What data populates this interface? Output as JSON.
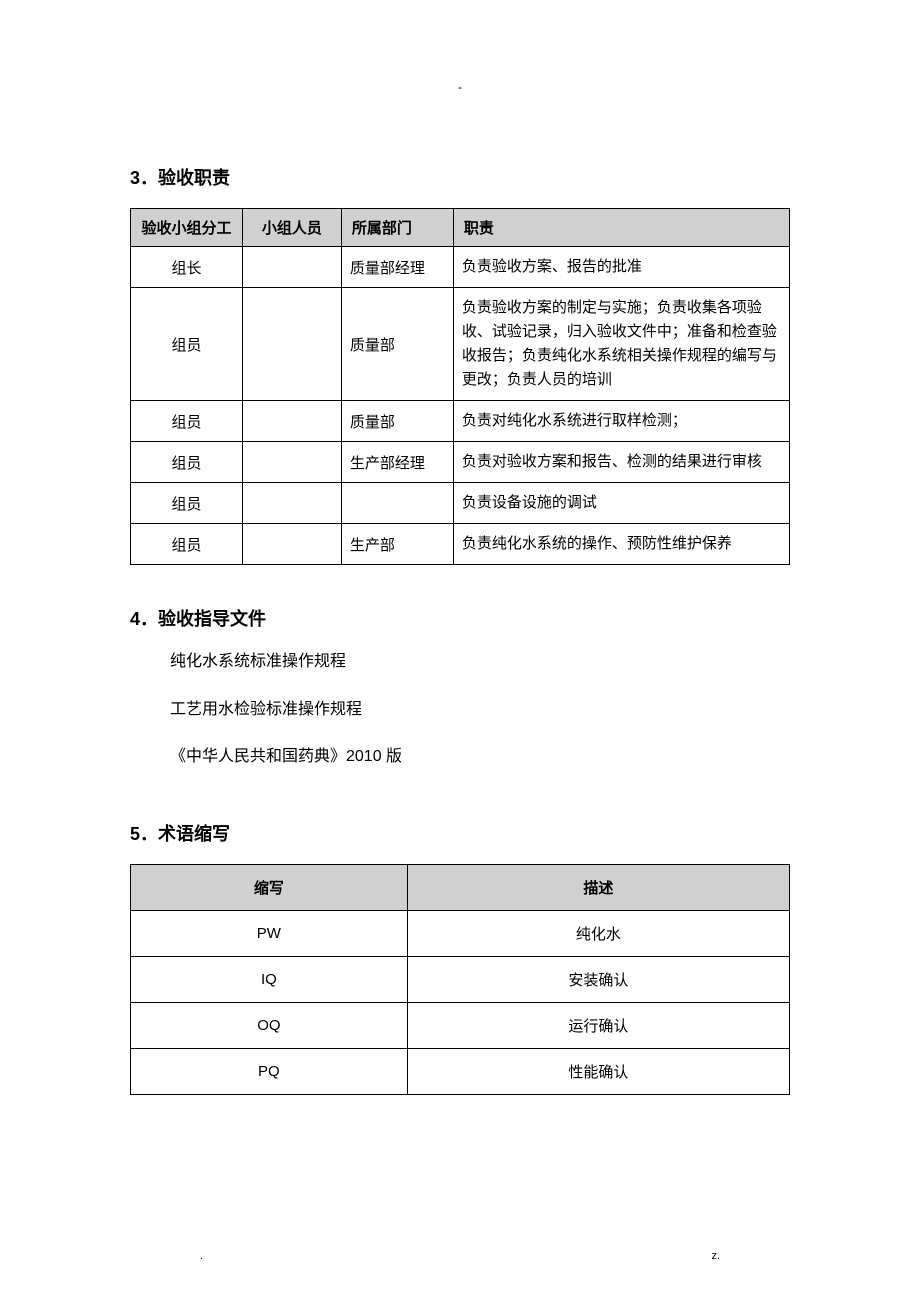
{
  "topMarker": "-",
  "section3": {
    "heading": "3．验收职责",
    "table": {
      "headers": [
        "验收小组分工",
        "小组人员",
        "所属部门",
        "职责"
      ],
      "rows": [
        [
          "组长",
          "",
          "质量部经理",
          "负责验收方案、报告的批准"
        ],
        [
          "组员",
          "",
          "质量部",
          "负责验收方案的制定与实施；负责收集各项验收、试验记录，归入验收文件中；准备和检查验收报告；负责纯化水系统相关操作规程的编写与更改；负责人员的培训"
        ],
        [
          "组员",
          "",
          "质量部",
          "负责对纯化水系统进行取样检测；"
        ],
        [
          "组员",
          "",
          "生产部经理",
          "负责对验收方案和报告、检测的结果进行审核"
        ],
        [
          "组员",
          "",
          "",
          "负责设备设施的调试"
        ],
        [
          "组员",
          "",
          "生产部",
          "负责纯化水系统的操作、预防性维护保养"
        ]
      ]
    }
  },
  "section4": {
    "heading": "4．验收指导文件",
    "items": [
      "纯化水系统标准操作规程",
      "工艺用水检验标准操作规程",
      "《中华人民共和国药典》2010 版"
    ]
  },
  "section5": {
    "heading": "5．术语缩写",
    "table": {
      "headers": [
        "缩写",
        "描述"
      ],
      "rows": [
        [
          "PW",
          "纯化水"
        ],
        [
          "IQ",
          "安装确认"
        ],
        [
          "OQ",
          "运行确认"
        ],
        [
          "PQ",
          "性能确认"
        ]
      ]
    }
  },
  "footer": {
    "left": ".",
    "right": "z."
  }
}
